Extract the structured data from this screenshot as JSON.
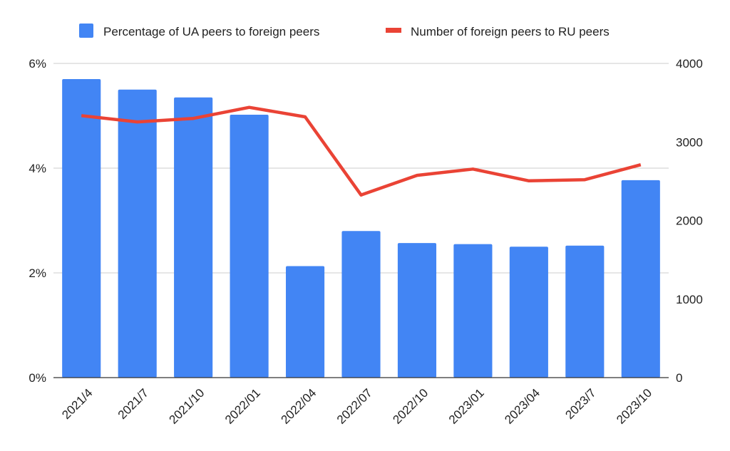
{
  "chart_data": {
    "type": "bar",
    "categories": [
      "2021/4",
      "2021/7",
      "2021/10",
      "2022/01",
      "2022/04",
      "2022/07",
      "2022/10",
      "2023/01",
      "2023/04",
      "2023/7",
      "2023/10"
    ],
    "series": [
      {
        "name": "Percentage of UA peers to foreign peers",
        "type": "bar",
        "axis": "left",
        "color": "#4285f4",
        "values": [
          5.7,
          5.5,
          5.35,
          5.02,
          2.13,
          2.8,
          2.57,
          2.55,
          2.5,
          2.52,
          3.77
        ]
      },
      {
        "name": "Number of foreign peers to RU peers",
        "type": "line",
        "axis": "right",
        "color": "#ea4335",
        "values": [
          3335,
          3255,
          3300,
          3440,
          3320,
          2325,
          2575,
          2655,
          2505,
          2520,
          2710
        ]
      }
    ],
    "y_left": {
      "ylim": [
        0,
        6
      ],
      "ticks": [
        0,
        2,
        4,
        6
      ],
      "tick_labels": [
        "0%",
        "2%",
        "4%",
        "6%"
      ]
    },
    "y_right": {
      "ylim": [
        0,
        4000
      ],
      "ticks": [
        0,
        1000,
        2000,
        3000,
        4000
      ],
      "tick_labels": [
        "0",
        "1000",
        "2000",
        "3000",
        "4000"
      ]
    },
    "grid": true,
    "legend_position": "top-center",
    "title": "",
    "xlabel": "",
    "ylabel": ""
  }
}
